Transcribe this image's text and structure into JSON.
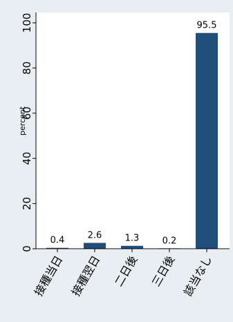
{
  "chart_data": {
    "type": "bar",
    "categories": [
      "接種当日",
      "接種翌日",
      "二日後",
      "三日後",
      "該当なし"
    ],
    "values": [
      0.4,
      2.6,
      1.3,
      0.2,
      95.5
    ],
    "value_labels": [
      "0.4",
      "2.6",
      "1.3",
      "0.2",
      "95.5"
    ],
    "title": "",
    "xlabel": "",
    "ylabel": "percent",
    "ylim": [
      0,
      100
    ],
    "yticks": [
      0,
      20,
      40,
      60,
      80,
      100
    ],
    "ytick_labels": [
      "0",
      "20",
      "40",
      "60",
      "80",
      "100"
    ],
    "grid": false,
    "legend": "none",
    "colors": {
      "bar": "#1f4e79",
      "plot_bg": "#ffffff",
      "page_bg": "#e9eef2",
      "axis": "#000000"
    }
  }
}
